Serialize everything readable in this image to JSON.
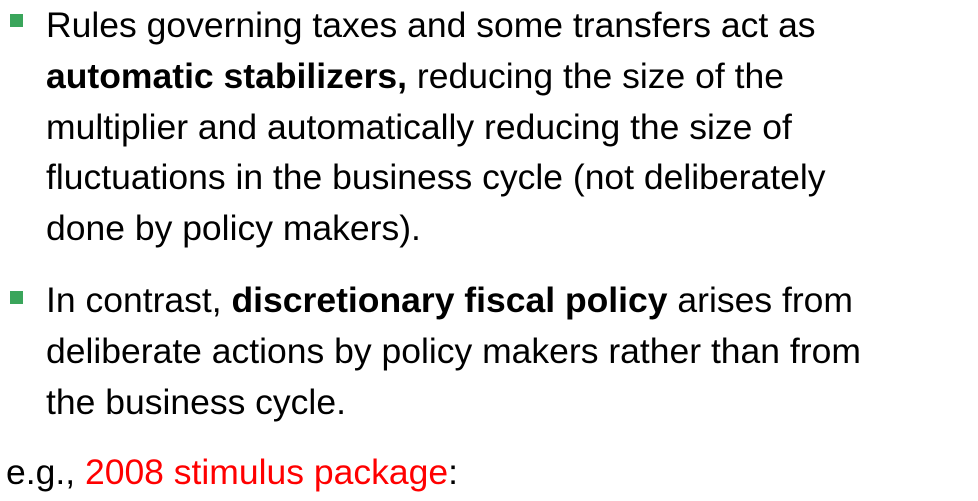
{
  "bullets": [
    {
      "lines": [
        [
          "Rules governing taxes and some transfers act as"
        ],
        [
          "automatic stabilizers,",
          " reducing the size of the"
        ],
        [
          "multiplier and automatically reducing the size of"
        ],
        [
          "fluctuations in the business cycle (not deliberately"
        ],
        [
          "done by policy makers)."
        ]
      ]
    },
    {
      "lines": [
        [
          "In contrast, ",
          "discretionary fiscal policy",
          " arises from"
        ],
        [
          "deliberate actions by policy makers rather than from"
        ],
        [
          "the business cycle."
        ]
      ]
    }
  ],
  "example": {
    "prefix": "e.g., ",
    "highlight": "2008 stimulus package",
    "suffix": ":"
  },
  "colors": {
    "bullet": "#3aa55b",
    "highlight": "#ff0000",
    "text": "#000000"
  }
}
